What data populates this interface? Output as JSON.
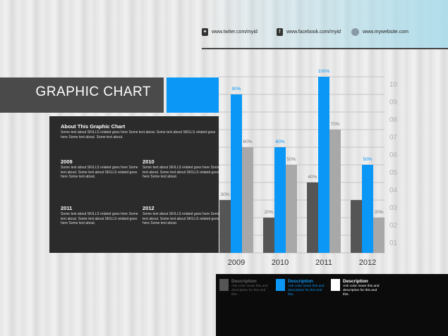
{
  "title": "GRAPHIC CHART",
  "socials": [
    {
      "icon": "evernote-icon",
      "text": "www.twiter.com/myid"
    },
    {
      "icon": "facebook-icon",
      "text": "www.facebook.com/myid"
    },
    {
      "icon": "globe-icon",
      "text": "www.mywebsite.com"
    }
  ],
  "info": {
    "heading": "About This Graphic Chart",
    "text": "Some text about SKILLS related goes here Some text about. Some text about SKILLS related goes here Some text about. Some text about.",
    "years": [
      {
        "year": "2009",
        "text": "Some text about SKILLS related goes here Some text about. Some text about SKILLS related goes here Some text about."
      },
      {
        "year": "2010",
        "text": "Some text about SKILLS related goes here Some text about. Some text about SKILLS related goes here Some text about."
      },
      {
        "year": "2011",
        "text": "Some text about SKILLS related goes here Some text about. Some text about SKILLS related goes here Some text about."
      },
      {
        "year": "2012",
        "text": "Some text about SKILLS related goes here Some text about. Some text about SKILLS related goes here Some text about."
      }
    ]
  },
  "legend": [
    {
      "label": "Description",
      "text": "Ash color mean this and description for this and this.",
      "color": "#555555",
      "text_color": "#666666"
    },
    {
      "label": "Description",
      "text": "Ash color mean this and description for this and this.",
      "color": "#0a97f5",
      "text_color": "#0a97f5"
    },
    {
      "label": "Description",
      "text": "Ash color mean this and description for this and this.",
      "color": "#ffffff",
      "text_color": "#ffffff"
    }
  ],
  "chart_data": {
    "type": "bar",
    "categories": [
      "2009",
      "2010",
      "2011",
      "2012"
    ],
    "series": [
      {
        "values": [
          30,
          20,
          40,
          30
        ],
        "labels": [
          "30%",
          "20%",
          "40%",
          ""
        ],
        "color": "#555555"
      },
      {
        "values": [
          90,
          60,
          100,
          50
        ],
        "labels": [
          "90%",
          "60%",
          "100%",
          "50%"
        ],
        "color": "#0a97f5"
      },
      {
        "values": [
          60,
          50,
          70,
          20
        ],
        "labels": [
          "60%",
          "50%",
          "70%",
          "20%"
        ],
        "color": "#a8a8a8"
      }
    ],
    "y_ticks": [
      "01",
      "02",
      "03",
      "04",
      "05",
      "06",
      "07",
      "08",
      "09",
      "10"
    ],
    "ylim": [
      0,
      100
    ],
    "grid": true
  }
}
